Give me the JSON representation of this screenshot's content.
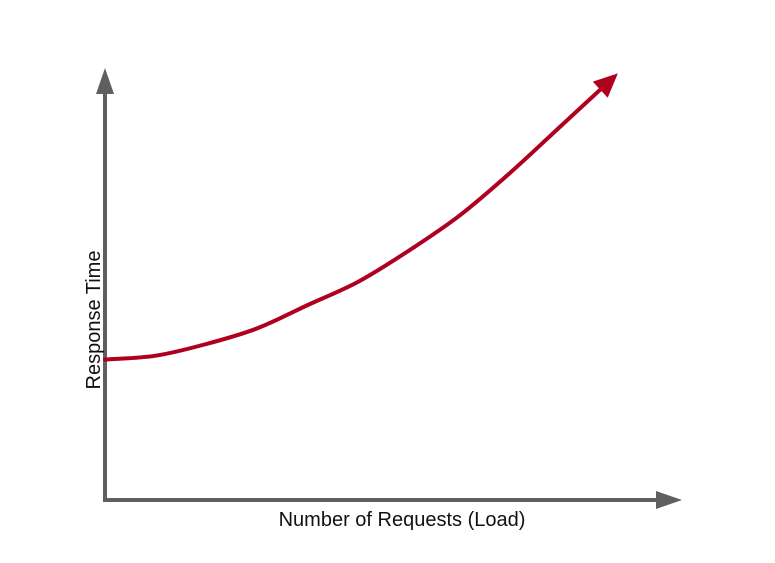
{
  "chart_data": {
    "type": "line",
    "title": "",
    "xlabel": "Number of Requests (Load)",
    "ylabel": "Response Time",
    "grid": false,
    "legend": "none",
    "axes_have_tick_labels": false,
    "shape": "exponential increase",
    "series": [
      {
        "color": "#b00020",
        "has_arrowhead": true,
        "x": [
          0,
          0.1,
          0.2,
          0.3,
          0.4,
          0.5,
          0.6,
          0.7,
          0.8,
          0.9,
          1.0
        ],
        "y": [
          0.36,
          0.37,
          0.4,
          0.44,
          0.5,
          0.56,
          0.64,
          0.73,
          0.84,
          0.96,
          1.08
        ]
      }
    ]
  },
  "colors": {
    "axis": "#5f5f5f",
    "curve": "#b00020",
    "background": "#ffffff"
  }
}
